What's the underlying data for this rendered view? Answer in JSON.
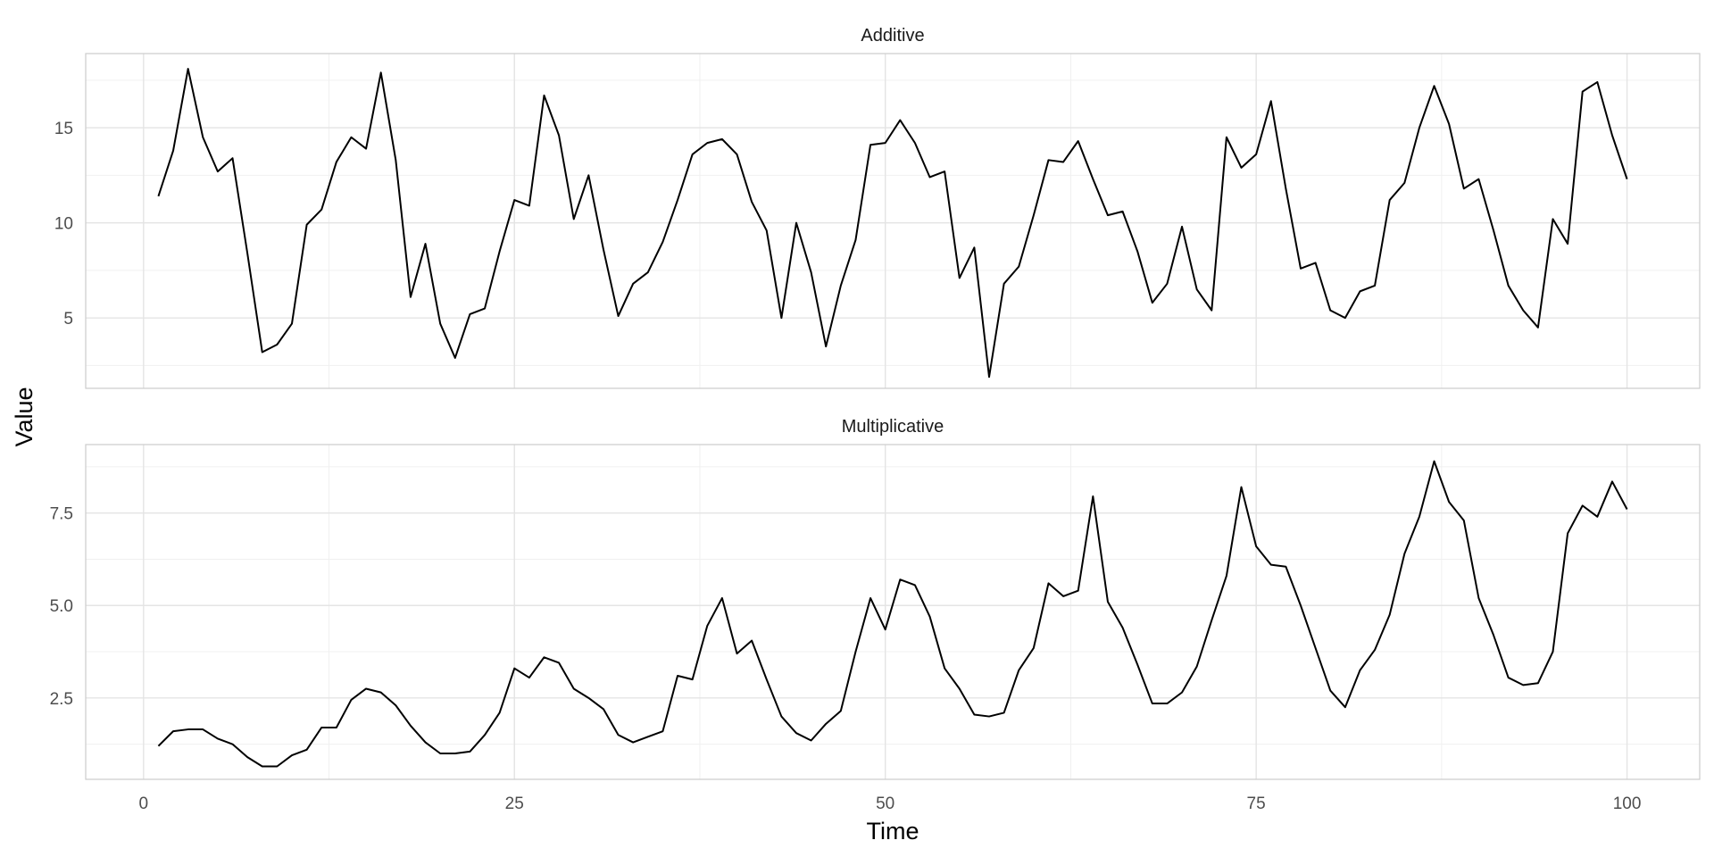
{
  "chart_data": {
    "type": "line",
    "xlabel": "Time",
    "ylabel": "Value",
    "x_ticks": [
      0,
      25,
      50,
      75,
      100
    ],
    "xlim": [
      -3.9,
      104.9
    ],
    "grid": true,
    "panels": [
      {
        "title": "Additive",
        "ylim": [
          1.3,
          18.9
        ],
        "y_ticks": [
          5,
          10,
          15
        ],
        "y_tick_labels": [
          "5",
          "10",
          "15"
        ],
        "series": [
          {
            "x": [
              1,
              2,
              3,
              4,
              5,
              6,
              7,
              8,
              9,
              10,
              11,
              12,
              13,
              14,
              15,
              16,
              17,
              18,
              19,
              20,
              21,
              22,
              23,
              24,
              25,
              26,
              27,
              28,
              29,
              30,
              31,
              32,
              33,
              34,
              35,
              36,
              37,
              38,
              39,
              40,
              41,
              42,
              43,
              44,
              45,
              46,
              47,
              48,
              49,
              50,
              51,
              52,
              53,
              54,
              55,
              56,
              57,
              58,
              59,
              60,
              61,
              62,
              63,
              64,
              65,
              66,
              67,
              68,
              69,
              70,
              71,
              72,
              73,
              74,
              75,
              76,
              77,
              78,
              79,
              80,
              81,
              82,
              83,
              84,
              85,
              86,
              87,
              88,
              89,
              90,
              91,
              92,
              93,
              94,
              95,
              96,
              97,
              98,
              99,
              100
            ],
            "values": [
              11.4,
              13.8,
              18.1,
              14.5,
              12.7,
              13.4,
              8.4,
              3.2,
              3.6,
              4.7,
              9.9,
              10.7,
              13.2,
              14.5,
              13.9,
              17.9,
              13.3,
              6.1,
              8.9,
              4.7,
              2.9,
              5.2,
              5.5,
              8.5,
              11.2,
              10.9,
              16.7,
              14.6,
              10.2,
              12.5,
              8.6,
              5.1,
              6.8,
              7.4,
              9.0,
              11.2,
              13.6,
              14.2,
              14.4,
              13.6,
              11.1,
              9.6,
              5.0,
              10.0,
              7.4,
              3.5,
              6.7,
              9.1,
              14.1,
              14.2,
              15.4,
              14.2,
              12.4,
              12.7,
              7.1,
              8.7,
              1.9,
              6.8,
              7.7,
              10.4,
              13.3,
              13.2,
              14.3,
              12.3,
              10.4,
              10.6,
              8.5,
              5.8,
              6.8,
              9.8,
              6.5,
              5.4,
              14.5,
              12.9,
              13.6,
              16.4,
              11.8,
              7.6,
              7.9,
              5.4,
              5.0,
              6.4,
              6.7,
              11.2,
              12.1,
              15.0,
              17.2,
              15.2,
              11.8,
              12.3,
              9.6,
              6.7,
              5.4,
              4.5,
              10.2,
              8.9,
              16.9,
              17.4,
              14.6,
              12.3
            ]
          }
        ]
      },
      {
        "title": "Multiplicative",
        "ylim": [
          0.3,
          9.35
        ],
        "y_ticks": [
          2.5,
          5.0,
          7.5
        ],
        "y_tick_labels": [
          "2.5",
          "5.0",
          "7.5"
        ],
        "series": [
          {
            "x": [
              1,
              2,
              3,
              4,
              5,
              6,
              7,
              8,
              9,
              10,
              11,
              12,
              13,
              14,
              15,
              16,
              17,
              18,
              19,
              20,
              21,
              22,
              23,
              24,
              25,
              26,
              27,
              28,
              29,
              30,
              31,
              32,
              33,
              34,
              35,
              36,
              37,
              38,
              39,
              40,
              41,
              42,
              43,
              44,
              45,
              46,
              47,
              48,
              49,
              50,
              51,
              52,
              53,
              54,
              55,
              56,
              57,
              58,
              59,
              60,
              61,
              62,
              63,
              64,
              65,
              66,
              67,
              68,
              69,
              70,
              71,
              72,
              73,
              74,
              75,
              76,
              77,
              78,
              79,
              80,
              81,
              82,
              83,
              84,
              85,
              86,
              87,
              88,
              89,
              90,
              91,
              92,
              93,
              94,
              95,
              96,
              97,
              98,
              99,
              100
            ],
            "values": [
              1.2,
              1.6,
              1.65,
              1.65,
              1.4,
              1.25,
              0.9,
              0.65,
              0.65,
              0.95,
              1.1,
              1.7,
              1.7,
              2.45,
              2.75,
              2.65,
              2.3,
              1.75,
              1.3,
              1.0,
              1.0,
              1.05,
              1.5,
              2.1,
              3.3,
              3.05,
              3.6,
              3.45,
              2.75,
              2.5,
              2.2,
              1.5,
              1.3,
              1.45,
              1.6,
              3.1,
              3.0,
              4.45,
              5.2,
              3.7,
              4.05,
              3.0,
              2.0,
              1.55,
              1.35,
              1.8,
              2.15,
              3.75,
              5.2,
              4.35,
              5.7,
              5.55,
              4.7,
              3.3,
              2.75,
              2.05,
              2.0,
              2.1,
              3.25,
              3.85,
              5.6,
              5.25,
              5.4,
              7.95,
              5.1,
              4.4,
              3.4,
              2.35,
              2.35,
              2.65,
              3.35,
              4.6,
              5.8,
              8.2,
              6.6,
              6.1,
              6.05,
              5.0,
              3.85,
              2.7,
              2.25,
              3.25,
              3.8,
              4.75,
              6.4,
              7.4,
              8.9,
              7.8,
              7.3,
              5.2,
              4.2,
              3.05,
              2.85,
              2.9,
              3.75,
              6.95,
              7.7,
              7.4,
              8.35,
              7.6
            ]
          }
        ]
      }
    ]
  }
}
